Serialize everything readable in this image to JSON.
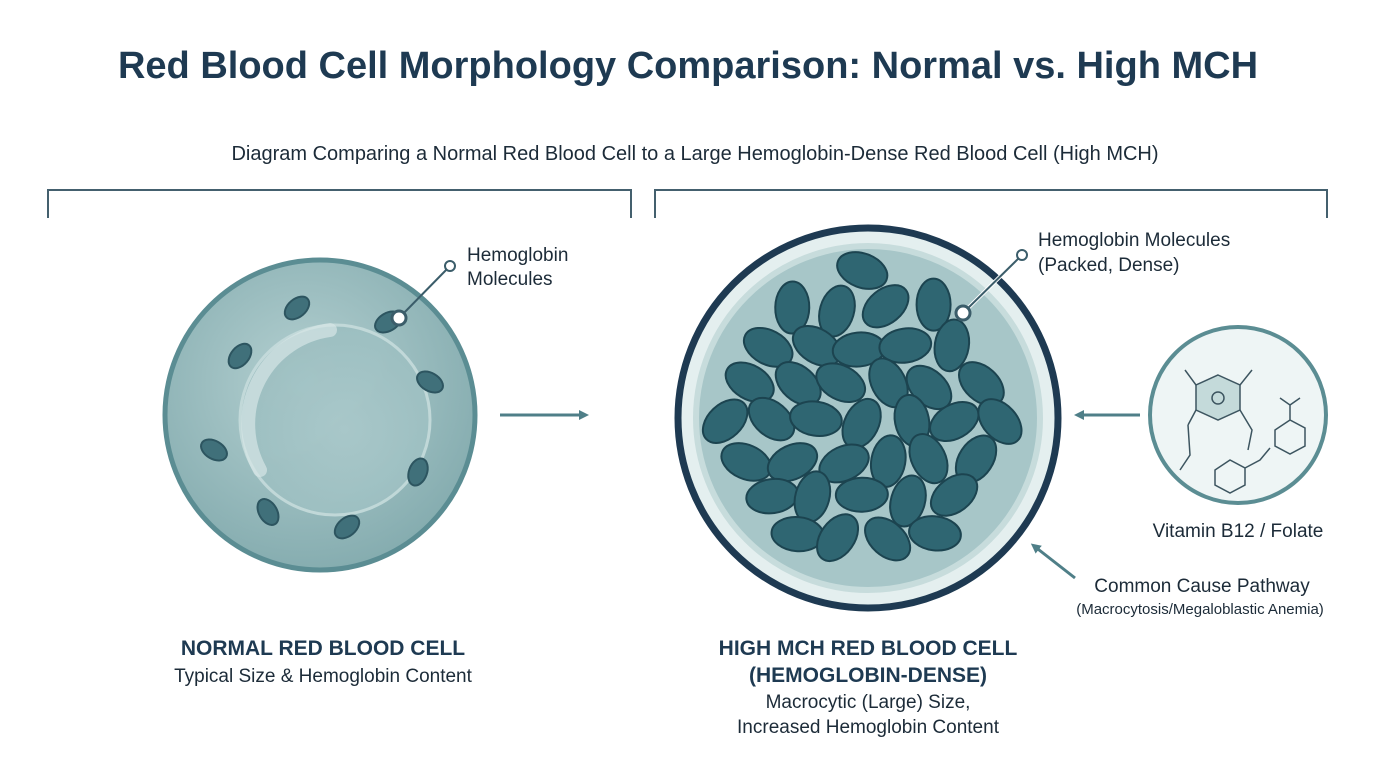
{
  "title": "Red Blood Cell Morphology Comparison: Normal vs. High MCH",
  "subtitle": "Diagram Comparing a Normal Red Blood Cell to a Large Hemoglobin-Dense Red Blood Cell (High MCH)",
  "normal_cell": {
    "callout_lines": [
      "Hemoglobin",
      "Molecules"
    ],
    "heading": "NORMAL RED BLOOD CELL",
    "description": "Typical Size & Hemoglobin Content"
  },
  "high_mch_cell": {
    "callout_lines": [
      "Hemoglobin Molecules",
      "(Packed, Dense)"
    ],
    "heading_lines": [
      "HIGH MCH RED BLOOD CELL",
      "(HEMOGLOBIN-DENSE)"
    ],
    "description_lines": [
      "Macrocytic (Large) Size,",
      "Increased Hemoglobin Content"
    ]
  },
  "cause": {
    "label": "Vitamin B12 / Folate",
    "pathway": "Common Cause Pathway",
    "pathway_detail": "(Macrocytosis/Megaloblastic Anemia)"
  }
}
